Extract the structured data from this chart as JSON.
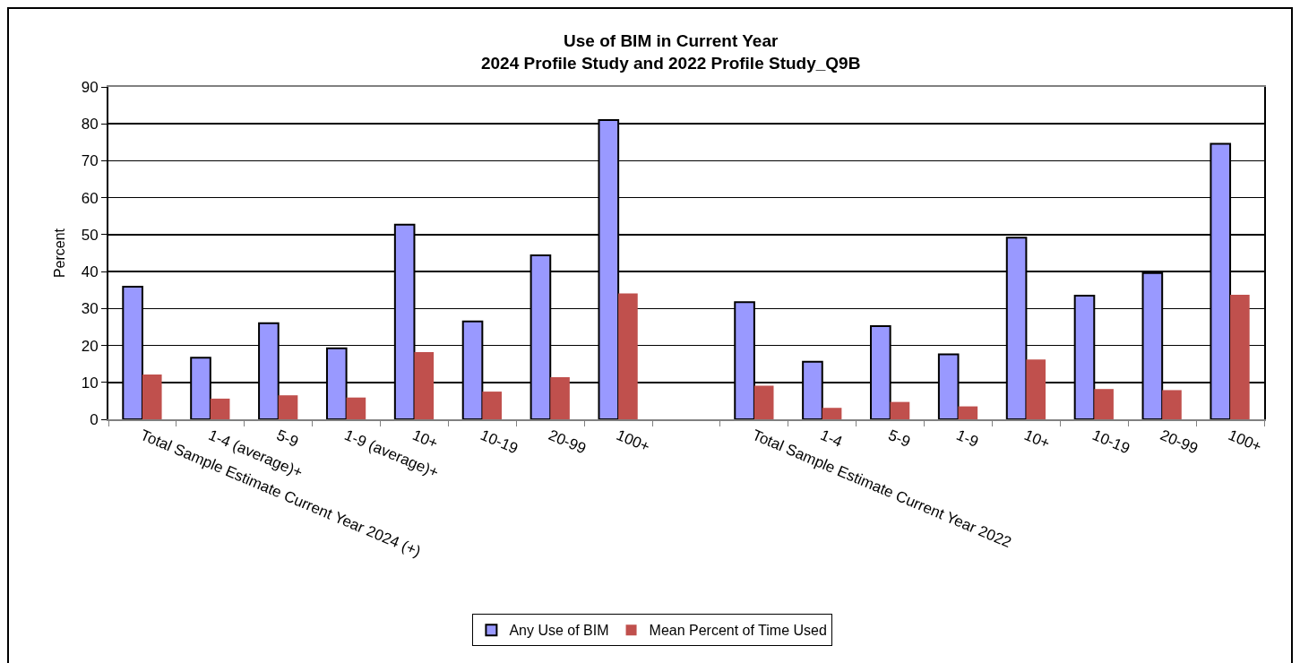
{
  "chart_data": {
    "type": "bar",
    "title": "Use of BIM in Current Year\n2024 Profile Study and 2022 Profile Study_Q9B",
    "ylabel": "Percent",
    "categories": [
      "Total Sample Estimate Current Year 2024 (+)",
      "1-4 (average)+",
      "5-9",
      "1-9 (average)+",
      "10+",
      "10-19",
      "20-99",
      "100+",
      null,
      "Total Sample Estimate Current Year 2022",
      "1-4",
      "5-9",
      "1-9",
      "10+",
      "10-19",
      "20-99",
      "100+"
    ],
    "series": [
      {
        "name": "Any Use of BIM",
        "color": "#9999ff",
        "values": [
          35.9,
          16.7,
          26.0,
          19.2,
          52.7,
          26.5,
          44.4,
          81.0,
          null,
          31.7,
          15.6,
          25.2,
          17.6,
          49.2,
          33.5,
          39.6,
          74.6
        ]
      },
      {
        "name": "Mean Percent of Time Used",
        "color": "#c0504d",
        "values": [
          12.1,
          5.6,
          6.5,
          5.9,
          18.2,
          7.5,
          11.4,
          34.1,
          null,
          9.1,
          3.1,
          4.7,
          3.5,
          16.2,
          8.2,
          7.9,
          33.7
        ]
      }
    ],
    "ylim": [
      0,
      90
    ],
    "yticks": [
      0,
      10,
      20,
      30,
      40,
      50,
      60,
      70,
      80,
      90
    ],
    "grid": "y",
    "legend": "bottom"
  }
}
